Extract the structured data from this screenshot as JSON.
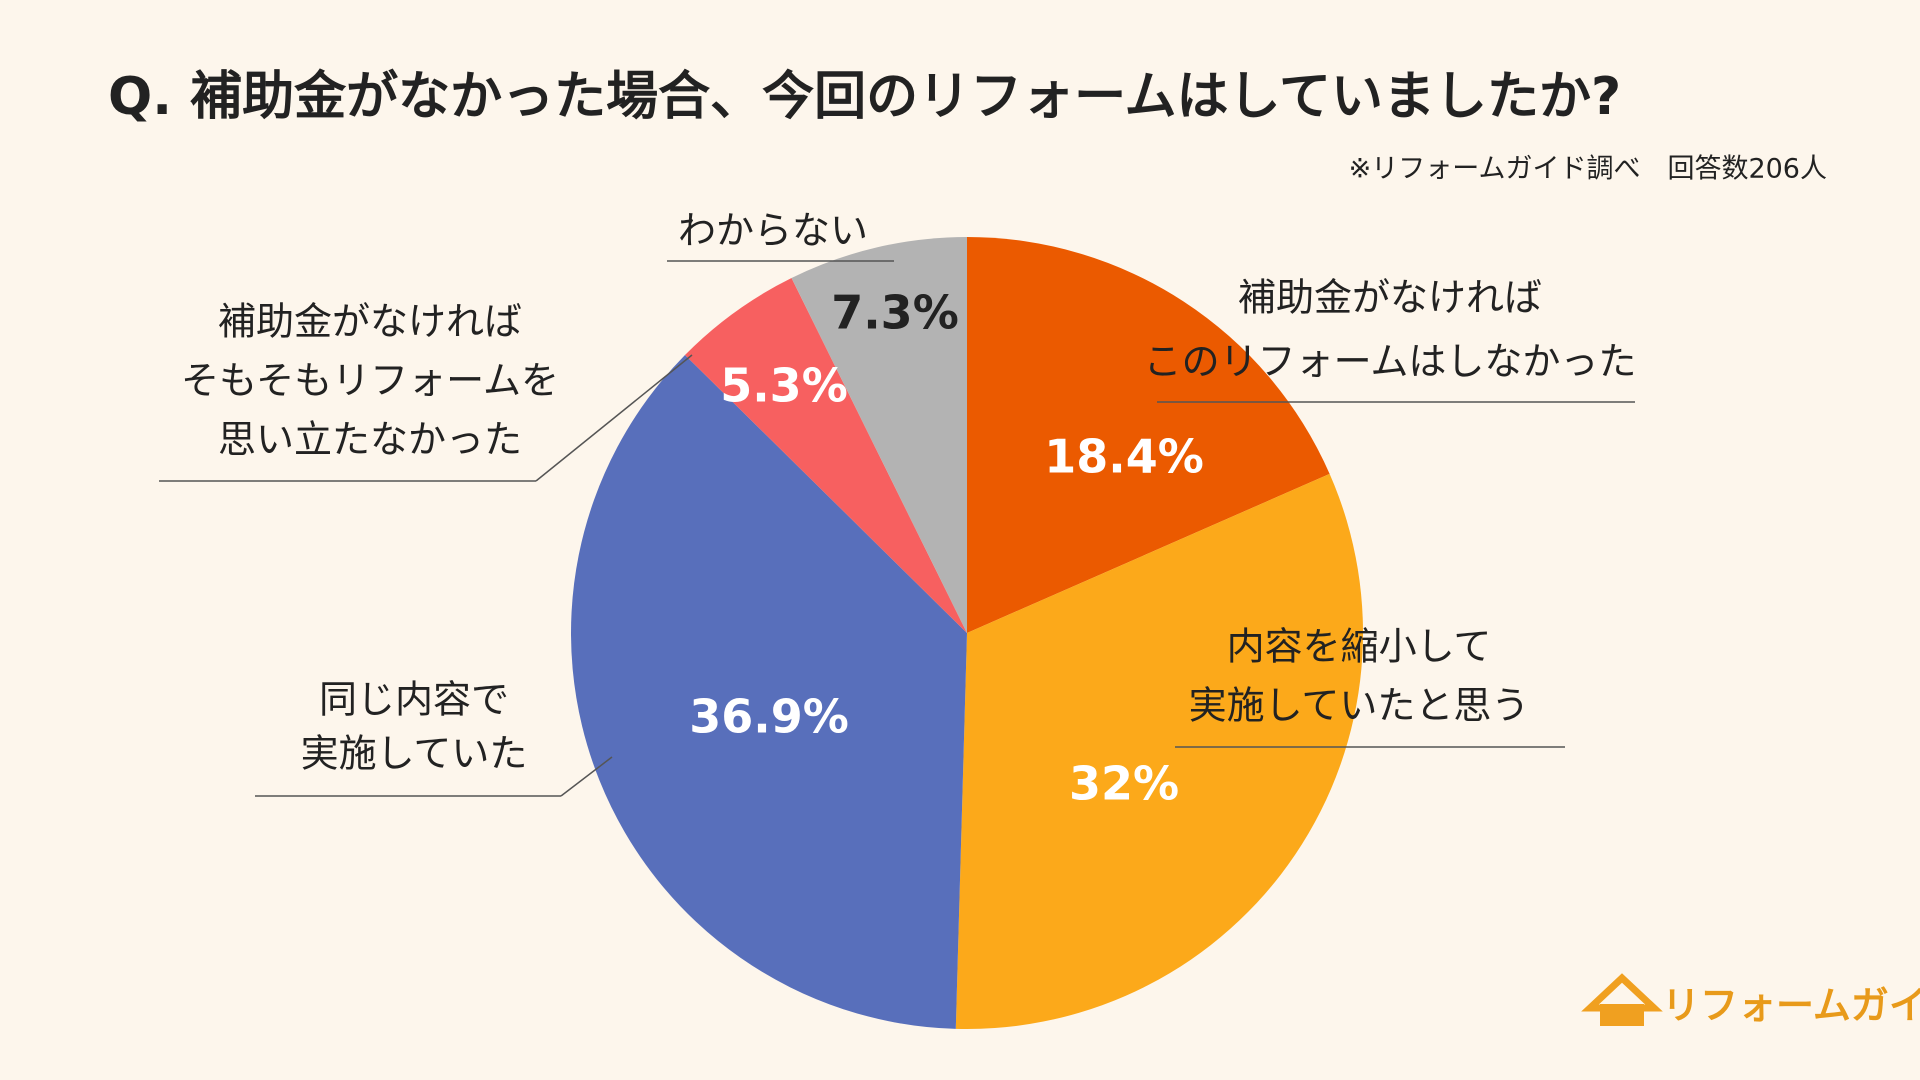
{
  "chart_data": {
    "type": "pie",
    "title": "Q.  補助金がなかった場合、今回のリフォームはしていましたか?",
    "note": "※リフォームガイド調べ　回答数206人",
    "brand": "リフォームガイド",
    "categories": [
      [
        "補助金がなければ",
        "このリフォームはしなかった"
      ],
      [
        "内容を縮小して",
        "実施していたと思う"
      ],
      [
        "同じ内容で",
        "実施していた"
      ],
      [
        "補助金がなければ",
        "そもそもリフォームを",
        "思い立たなかった"
      ],
      [
        "わからない"
      ]
    ],
    "values": [
      18.4,
      32,
      36.9,
      5.3,
      7.3
    ],
    "value_labels": [
      "18.4%",
      "32%",
      "36.9%",
      "5.3%",
      "7.3%"
    ],
    "colors": [
      "#eb5a00",
      "#fca91a",
      "#586fbb",
      "#f76060",
      "#b3b3b3"
    ],
    "value_label_colors": [
      "#ffffff",
      "#ffffff",
      "#ffffff",
      "#ffffff",
      "#222222"
    ]
  }
}
